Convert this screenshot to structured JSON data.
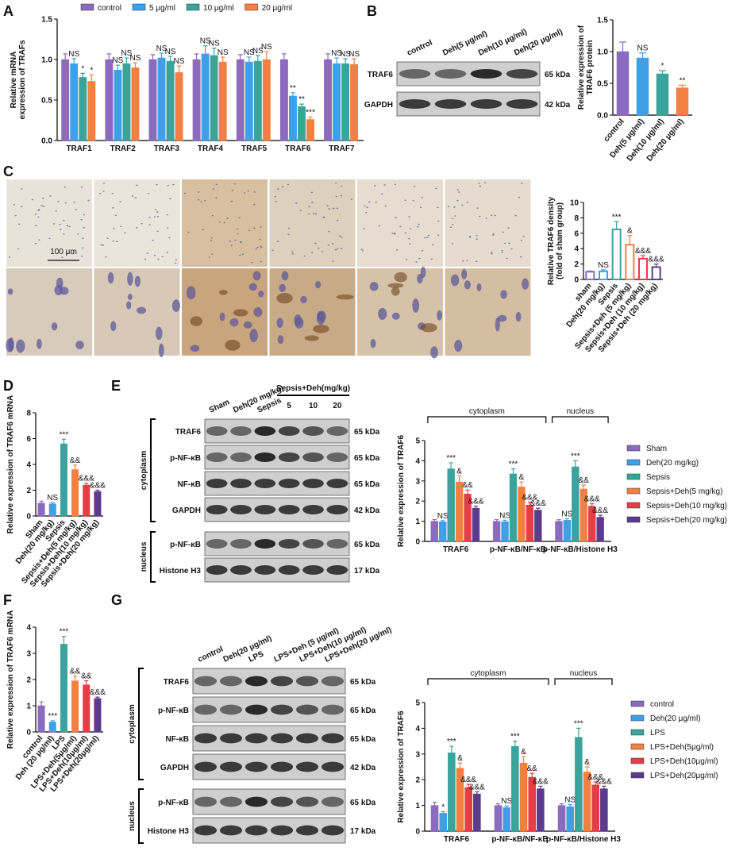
{
  "panels": [
    "A",
    "B",
    "C",
    "D",
    "E",
    "F",
    "G"
  ],
  "chart_data": [
    {
      "type": "bar",
      "ylabel": [
        "Relative mRNA",
        "expression of TRAFs"
      ],
      "legend": "top",
      "categories": [
        "TRAF1",
        "TRAF2",
        "TRAF3",
        "TRAF4",
        "TRAF5",
        "TRAF6",
        "TRAF7"
      ],
      "ylim": [
        0,
        1.5
      ],
      "yticks": [
        {
          "value": 0,
          "label": "0.0"
        },
        {
          "value": 0.5,
          "label": "0.5"
        },
        {
          "value": 1,
          "label": "1.0"
        },
        {
          "value": 1.5,
          "label": "1.5"
        }
      ],
      "series": [
        {
          "name": "control",
          "color": "#8a6bbf",
          "values": [
            1,
            1,
            1,
            1,
            1,
            1,
            1
          ],
          "errors": [
            0.07,
            0.07,
            0.06,
            0.07,
            0.06,
            0.07,
            0.07
          ],
          "labels": [
            null,
            null,
            null,
            null,
            null,
            null,
            null
          ]
        },
        {
          "name": "5 μg/ml",
          "color": "#3fa0e8",
          "values": [
            0.95,
            0.87,
            1.02,
            1.07,
            0.97,
            0.55,
            0.95
          ],
          "errors": [
            0.06,
            0.06,
            0.06,
            0.1,
            0.06,
            0.04,
            0.07
          ],
          "labels": [
            "NS",
            "NS",
            "NS",
            "NS",
            "NS",
            "**",
            "NS"
          ]
        },
        {
          "name": "10 μg/ml",
          "color": "#3aa39b",
          "values": [
            0.78,
            0.95,
            0.98,
            1.05,
            0.98,
            0.42,
            0.95
          ],
          "errors": [
            0.05,
            0.07,
            0.06,
            0.09,
            0.07,
            0.03,
            0.06
          ],
          "labels": [
            "*",
            "NS",
            "NS",
            "NS",
            "NS",
            "**",
            "NS"
          ]
        },
        {
          "name": "20 μg/ml",
          "color": "#f38042",
          "values": [
            0.73,
            0.9,
            0.84,
            0.97,
            1.0,
            0.26,
            0.94
          ],
          "errors": [
            0.08,
            0.06,
            0.08,
            0.06,
            0.1,
            0.03,
            0.07
          ],
          "labels": [
            "*",
            "NS",
            "NS",
            "NS",
            "NS",
            "***",
            "NS"
          ]
        }
      ]
    },
    {
      "type": "bar",
      "ylabel": [
        "Relative expression of",
        "TRAF6 protein"
      ],
      "categories": [
        "control",
        "Deh(5 μg/ml)",
        "Deh(10 μg/ml)",
        "Deh(20 μg/ml)"
      ],
      "values": [
        1,
        0.9,
        0.65,
        0.43
      ],
      "errors": [
        0.15,
        0.08,
        0.05,
        0.04
      ],
      "labels": [
        null,
        "NS",
        "*",
        "**"
      ],
      "colors": [
        "#8a6bbf",
        "#3fa0e8",
        "#3aa39b",
        "#f38042"
      ],
      "ylim": [
        0,
        1.5
      ],
      "yticks": [
        {
          "value": 0,
          "label": "0.0"
        },
        {
          "value": 0.5,
          "label": "0.5"
        },
        {
          "value": 1,
          "label": "1.0"
        },
        {
          "value": 1.5,
          "label": "1.5"
        }
      ]
    },
    {
      "type": "bar",
      "style": "outline",
      "ylabel": [
        "Relative TRAF6 density",
        "(fold of sham group)"
      ],
      "categories": [
        "sham",
        "Deh(20 mg/kg)",
        "Sepsis",
        "Sepsis+Deh (5 mg/kg)",
        "Sepsis+Deh (10 mg/kg)",
        "Sepsis+Deh (20 mg/kg)"
      ],
      "values": [
        1,
        1.05,
        6.5,
        4.5,
        2.7,
        1.6
      ],
      "errors": [
        0.1,
        0.2,
        1.0,
        1.2,
        0.4,
        0.4
      ],
      "labels": [
        null,
        "NS",
        "***",
        "&",
        "&&&",
        "&&&"
      ],
      "colors": [
        "#8a6bbf",
        "#3fa0e8",
        "#3aa39b",
        "#f38042",
        "#e63d46",
        "#5b3b8c"
      ],
      "ylim": [
        0,
        10
      ],
      "yticks": [
        0,
        2,
        4,
        6,
        8,
        10
      ]
    },
    {
      "type": "bar",
      "ylabel": [
        "Relative expression of TRAF6 mRNA"
      ],
      "categories": [
        "Sham",
        "Deh(20 mg/kg)",
        "Sepsis",
        "Sepsis+Deh(5 mg/kg)",
        "Sepsis+Deh(10 mg/kg)",
        "Sepsis+Deh(20 mg/kg)"
      ],
      "values": [
        1,
        0.95,
        5.6,
        3.6,
        2.4,
        1.9
      ],
      "errors": [
        0.15,
        0.1,
        0.35,
        0.35,
        0.15,
        0.1
      ],
      "labels": [
        null,
        "NS",
        "***",
        "&&",
        "&&&",
        "&&&"
      ],
      "colors": [
        "#8a6bbf",
        "#3fa0e8",
        "#3aa39b",
        "#f38042",
        "#e63d46",
        "#5b3b8c"
      ],
      "ylim": [
        0,
        8
      ],
      "yticks": [
        0,
        2,
        4,
        6,
        8
      ]
    },
    {
      "type": "bar",
      "ylabel": [
        "Relative expression of TRAF6"
      ],
      "legend": "right",
      "group_labels": [
        "cytoplasm",
        "nucleus"
      ],
      "categories": [
        "TRAF6",
        "p-NF-κB/NF-κB",
        "p-NF-κB/Histone H3"
      ],
      "ylim": [
        0,
        5
      ],
      "yticks": [
        0,
        1,
        2,
        3,
        4,
        5
      ],
      "series": [
        {
          "name": "Sham",
          "color": "#8a6bbf",
          "values": [
            1,
            1,
            1
          ],
          "errors": [
            0.08,
            0.08,
            0.08
          ],
          "labels": [
            null,
            null,
            null
          ]
        },
        {
          "name": "Deh(20 mg/kg)",
          "color": "#3fa0e8",
          "values": [
            0.97,
            0.98,
            1.05
          ],
          "errors": [
            0.06,
            0.07,
            0.08
          ],
          "labels": [
            "NS",
            "NS",
            "NS"
          ]
        },
        {
          "name": "Sepsis",
          "color": "#3aa39b",
          "values": [
            3.6,
            3.35,
            3.7
          ],
          "errors": [
            0.3,
            0.25,
            0.3
          ],
          "labels": [
            "***",
            "***",
            "***"
          ]
        },
        {
          "name": "Sepsis+Deh(5 mg/kg)",
          "color": "#f38042",
          "values": [
            2.95,
            2.7,
            2.6
          ],
          "errors": [
            0.3,
            0.25,
            0.2
          ],
          "labels": [
            "&",
            "&",
            "&&"
          ]
        },
        {
          "name": "Sepsis+Deh(10 mg/kg)",
          "color": "#e63d46",
          "values": [
            2.35,
            1.8,
            1.75
          ],
          "errors": [
            0.2,
            0.15,
            0.12
          ],
          "labels": [
            "&&",
            "&&&",
            "&&&"
          ]
        },
        {
          "name": "Sepsis+Deh(20 mg/kg)",
          "color": "#5b3b8c",
          "values": [
            1.65,
            1.55,
            1.2
          ],
          "errors": [
            0.1,
            0.1,
            0.1
          ],
          "labels": [
            "&&&",
            "&&&",
            "&&&"
          ]
        }
      ]
    },
    {
      "type": "bar",
      "ylabel": [
        "Relative expression of TRAF6 mRNA"
      ],
      "categories": [
        "control",
        "Deh (20 μg/ml)",
        "LPS",
        "LPS+Deh(5μg/ml)",
        "LPS+Deh(10μg/ml)",
        "LPS+Deh(20μg/ml)"
      ],
      "values": [
        1,
        0.38,
        3.35,
        1.95,
        1.8,
        1.28
      ],
      "errors": [
        0.15,
        0.05,
        0.3,
        0.18,
        0.15,
        0.05
      ],
      "labels": [
        null,
        "***",
        "***",
        "&&",
        "&&",
        "&&&"
      ],
      "colors": [
        "#8a6bbf",
        "#3fa0e8",
        "#3aa39b",
        "#f38042",
        "#e63d46",
        "#5b3b8c"
      ],
      "ylim": [
        0,
        4
      ],
      "yticks": [
        0,
        1,
        2,
        3,
        4
      ]
    },
    {
      "type": "bar",
      "ylabel": [
        "Relative expression of TRAF6"
      ],
      "legend": "right",
      "group_labels": [
        "cytoplasm",
        "nucleus"
      ],
      "categories": [
        "TRAF6",
        "p-NF-κB/NF-κB",
        "p-NF-κB/Histone H3"
      ],
      "ylim": [
        0,
        5
      ],
      "yticks": [
        0,
        1,
        2,
        3,
        4,
        5
      ],
      "series": [
        {
          "name": "control",
          "color": "#8a6bbf",
          "values": [
            1,
            1,
            1
          ],
          "errors": [
            0.12,
            0.06,
            0.06
          ],
          "labels": [
            null,
            null,
            null
          ]
        },
        {
          "name": "Deh(20 μg/ml)",
          "color": "#3fa0e8",
          "values": [
            0.7,
            0.92,
            0.95
          ],
          "errors": [
            0.06,
            0.06,
            0.08
          ],
          "labels": [
            "*",
            "NS",
            "NS"
          ]
        },
        {
          "name": "LPS",
          "color": "#3aa39b",
          "values": [
            3.05,
            3.3,
            3.65
          ],
          "errors": [
            0.25,
            0.2,
            0.35
          ],
          "labels": [
            "***",
            "***",
            "***"
          ]
        },
        {
          "name": "LPS+Deh(5μg/ml)",
          "color": "#f38042",
          "values": [
            2.45,
            2.65,
            2.3
          ],
          "errors": [
            0.2,
            0.25,
            0.2
          ],
          "labels": [
            "&",
            "&",
            "&"
          ]
        },
        {
          "name": "LPS+Deh(10μg/ml)",
          "color": "#e63d46",
          "values": [
            1.7,
            2.1,
            1.8
          ],
          "errors": [
            0.12,
            0.15,
            0.12
          ],
          "labels": [
            "&&&",
            "&&",
            "&&&"
          ]
        },
        {
          "name": "LPS+Deh(20μg/ml)",
          "color": "#5b3b8c",
          "values": [
            1.45,
            1.65,
            1.65
          ],
          "errors": [
            0.08,
            0.1,
            0.1
          ],
          "labels": [
            "&&&",
            "&&&",
            "&&&"
          ]
        }
      ]
    }
  ],
  "blots": {
    "B": {
      "lanes": [
        "control",
        "Deh(5 μg/ml)",
        "Deh(10 μg/ml)",
        "Deh(20 μg/ml)"
      ],
      "sections": [
        {
          "rows": [
            {
              "label": "TRAF6",
              "size": "65 kDa"
            },
            {
              "label": "GAPDH",
              "size": "42 kDa"
            }
          ]
        }
      ]
    },
    "E": {
      "lanes": [
        "Sham",
        "Deh(20 mg/kg)",
        "Sepsis",
        "5",
        "10",
        "20"
      ],
      "lane_group": "Sepsis+Deh(mg/kg)",
      "sections": [
        {
          "label": "cytoplasm",
          "rows": [
            {
              "label": "TRAF6",
              "size": "65 kDa"
            },
            {
              "label": "p-NF-κB",
              "size": "65 kDa"
            },
            {
              "label": "NF-κB",
              "size": "65 kDa"
            },
            {
              "label": "GAPDH",
              "size": "42 kDa"
            }
          ]
        },
        {
          "label": "nucleus",
          "rows": [
            {
              "label": "p-NF-κB",
              "size": "65 kDa"
            },
            {
              "label": "Histone H3",
              "size": "17 kDa"
            }
          ]
        }
      ]
    },
    "G": {
      "lanes": [
        "control",
        "Deh(20 μg/ml)",
        "LPS",
        "LPS+Deh (5 μg/ml)",
        "LPS+Deh(10 μg/ml)",
        "LPS+Deh(20 μg/ml)"
      ],
      "sections": [
        {
          "label": "cytoplasm",
          "rows": [
            {
              "label": "TRAF6",
              "size": "65 kDa"
            },
            {
              "label": "p-NF-κB",
              "size": "65 kDa"
            },
            {
              "label": "NF-κB",
              "size": "65 kDa"
            },
            {
              "label": "GAPDH",
              "size": "42 kDa"
            }
          ]
        },
        {
          "label": "nucleus",
          "rows": [
            {
              "label": "p-NF-κB",
              "size": "65 kDa"
            },
            {
              "label": "Histone H3",
              "size": "17 kDa"
            }
          ]
        }
      ]
    }
  },
  "micrographs": {
    "scale_bar": "100 μm"
  }
}
